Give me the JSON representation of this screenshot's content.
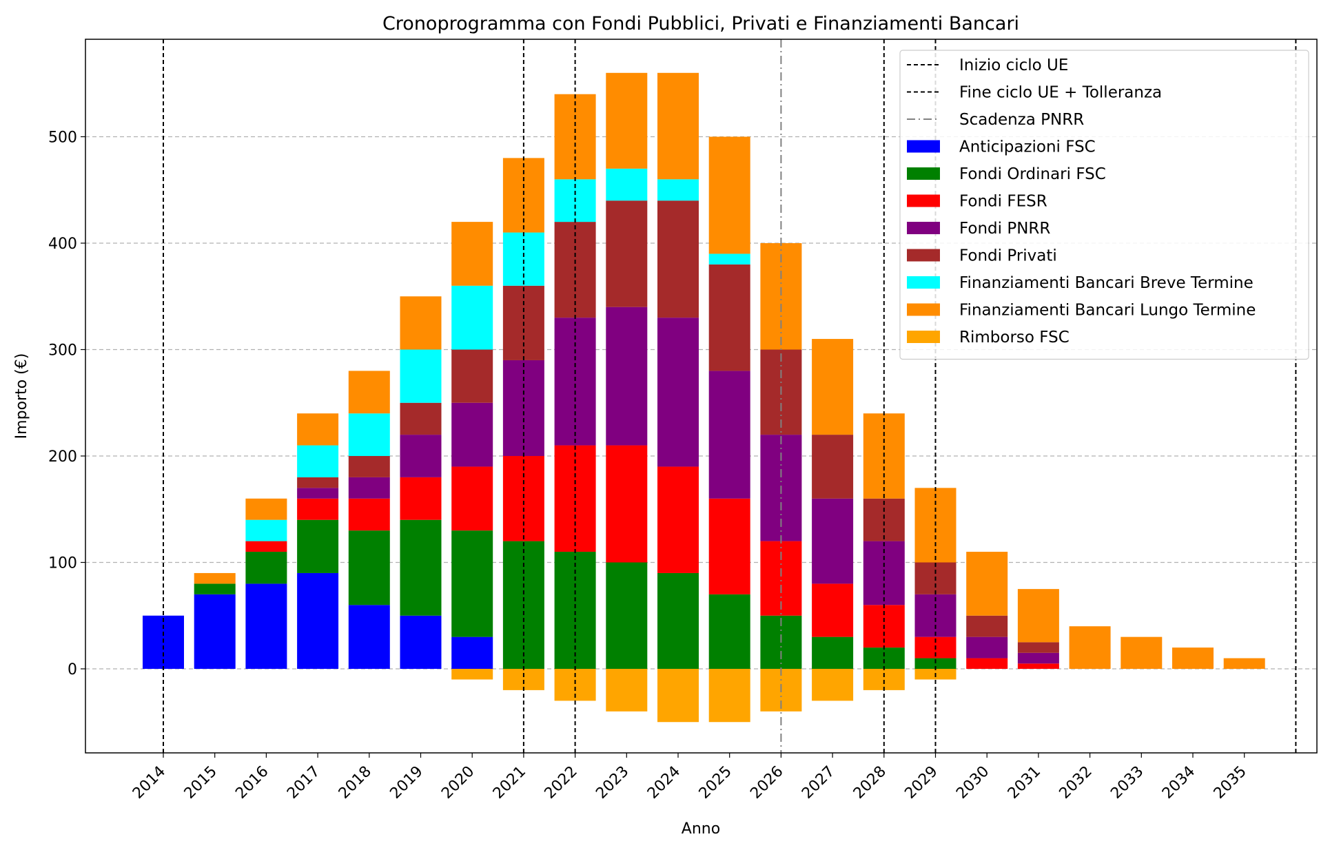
{
  "chart_data": {
    "type": "bar",
    "stacked": true,
    "title": "Cronoprogramma con Fondi Pubblici, Privati e Finanziamenti Bancari",
    "xlabel": "Anno",
    "ylabel": "Importo (€)",
    "ylim": [
      -80,
      590
    ],
    "yticks": [
      0,
      100,
      200,
      300,
      400,
      500
    ],
    "grid": "horizontal dashed",
    "legend_position": "top-right",
    "categories": [
      "2014",
      "2015",
      "2016",
      "2017",
      "2018",
      "2019",
      "2020",
      "2021",
      "2022",
      "2023",
      "2024",
      "2025",
      "2026",
      "2027",
      "2028",
      "2029",
      "2030",
      "2031",
      "2032",
      "2033",
      "2034",
      "2035"
    ],
    "series": [
      {
        "name": "Anticipazioni FSC",
        "color": "#0000ff",
        "values": [
          50,
          70,
          80,
          90,
          60,
          50,
          30,
          0,
          0,
          0,
          0,
          0,
          0,
          0,
          0,
          0,
          0,
          0,
          0,
          0,
          0,
          0
        ]
      },
      {
        "name": "Fondi Ordinari FSC",
        "color": "#008000",
        "values": [
          0,
          10,
          30,
          50,
          70,
          90,
          100,
          120,
          110,
          100,
          90,
          70,
          50,
          30,
          20,
          10,
          0,
          0,
          0,
          0,
          0,
          0
        ]
      },
      {
        "name": "Fondi FESR",
        "color": "#ff0000",
        "values": [
          0,
          0,
          10,
          20,
          30,
          40,
          60,
          80,
          100,
          110,
          100,
          90,
          70,
          50,
          40,
          20,
          10,
          5,
          0,
          0,
          0,
          0
        ]
      },
      {
        "name": "Fondi PNRR",
        "color": "#800080",
        "values": [
          0,
          0,
          0,
          10,
          20,
          40,
          60,
          90,
          120,
          130,
          140,
          120,
          100,
          80,
          60,
          40,
          20,
          10,
          0,
          0,
          0,
          0
        ]
      },
      {
        "name": "Fondi Privati",
        "color": "#a52a2a",
        "values": [
          0,
          0,
          0,
          10,
          20,
          30,
          50,
          70,
          90,
          100,
          110,
          100,
          80,
          60,
          40,
          30,
          20,
          10,
          0,
          0,
          0,
          0
        ]
      },
      {
        "name": "Finanziamenti Bancari Breve Termine",
        "color": "#00ffff",
        "values": [
          0,
          0,
          20,
          30,
          40,
          50,
          60,
          50,
          40,
          30,
          20,
          10,
          0,
          0,
          0,
          0,
          0,
          0,
          0,
          0,
          0,
          0
        ]
      },
      {
        "name": "Finanziamenti Bancari Lungo Termine",
        "color": "#ff8c00",
        "values": [
          0,
          10,
          20,
          30,
          40,
          50,
          60,
          70,
          80,
          90,
          100,
          110,
          100,
          90,
          80,
          70,
          60,
          50,
          40,
          30,
          20,
          10
        ]
      },
      {
        "name": "Rimborso FSC",
        "color": "#ffa500",
        "values": [
          0,
          0,
          0,
          0,
          0,
          0,
          -10,
          -20,
          -30,
          -40,
          -50,
          -50,
          -40,
          -30,
          -20,
          -10,
          0,
          0,
          0,
          0,
          0,
          0
        ]
      }
    ],
    "vlines": [
      {
        "name": "Inizio ciclo UE",
        "style": "dashed",
        "color": "#000000",
        "x": [
          "2014",
          "2021"
        ]
      },
      {
        "name": "Fine ciclo UE + Tolleranza",
        "style": "dashed",
        "color": "#000000",
        "x": [
          "2022",
          "2028",
          "2029",
          "2036"
        ]
      },
      {
        "name": "Scadenza PNRR",
        "style": "dashdot",
        "color": "#808080",
        "x": [
          "2026"
        ]
      }
    ]
  }
}
